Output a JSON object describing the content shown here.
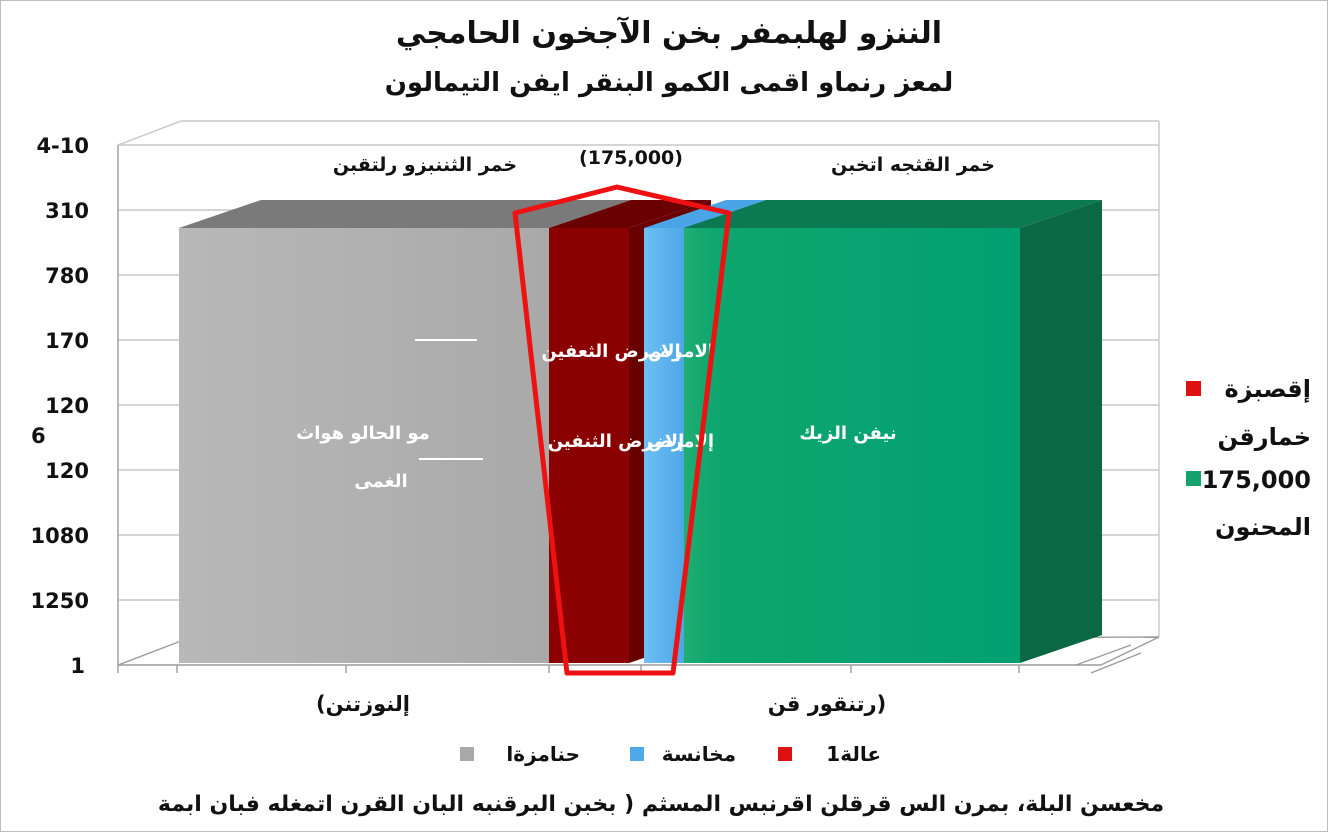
{
  "chart_data": {
    "type": "bar",
    "title": "الننزو لهلبمفر بخن الآجخون الحامجي",
    "subtitle": "لمعز رنماو اقمى الكمو البنقر ايفن التيمالون",
    "y_tick_labels": [
      "4-10",
      "310",
      "780",
      "170",
      "120",
      "120",
      "1080",
      "1250",
      "1"
    ],
    "y_side_label": "6",
    "categories": [
      "(إلنوزتنن",
      "رتنقور قن)"
    ],
    "group_headers": [
      "خمر الثننبزو رلتقبن",
      "خمر القثجه اتخبن"
    ],
    "series": [
      {
        "name": "حنامزةا",
        "color": "#a9a9a9",
        "values": [
          1,
          null
        ]
      },
      {
        "name": "عالة1",
        "color": "#8b0000",
        "values": [
          1,
          null
        ]
      },
      {
        "name": "مخانسة",
        "color": "#5aafea",
        "values": [
          null,
          1
        ]
      },
      {
        "name": "",
        "color": "#00a070",
        "values": [
          null,
          1
        ]
      }
    ],
    "bar_labels": {
      "gray": [
        "مو الحالو هواث",
        "الغمى"
      ],
      "red": [
        "إلامرض الثعفين",
        "إلامرض الثنفين"
      ],
      "blue": [
        "إلامرض",
        "إلامرض"
      ],
      "green": [
        "نيفن الزيك"
      ]
    },
    "highlight_label": "(175,000)",
    "right_legend": [
      {
        "label": "إقصبزة",
        "color": "#dd1111"
      },
      {
        "label": "خمارقن",
        "color": ""
      },
      {
        "label": "175,000",
        "color": "#14a36e"
      },
      {
        "label": "المحنون",
        "color": ""
      }
    ],
    "bottom_legend": [
      {
        "label": "حنامزةا",
        "color": "#a9a9a9"
      },
      {
        "label": "مخانسة",
        "color": "#4fa8e8"
      },
      {
        "label": "عالة1",
        "color": "#dd1111"
      }
    ],
    "footnote": "مخعسن البلة، بمرن الس قرقلن اقرنبس المسثم ( بخبن البرقنبه البان القرن اتمغله فبان ابمة",
    "grid": true,
    "legend_position": "right"
  }
}
